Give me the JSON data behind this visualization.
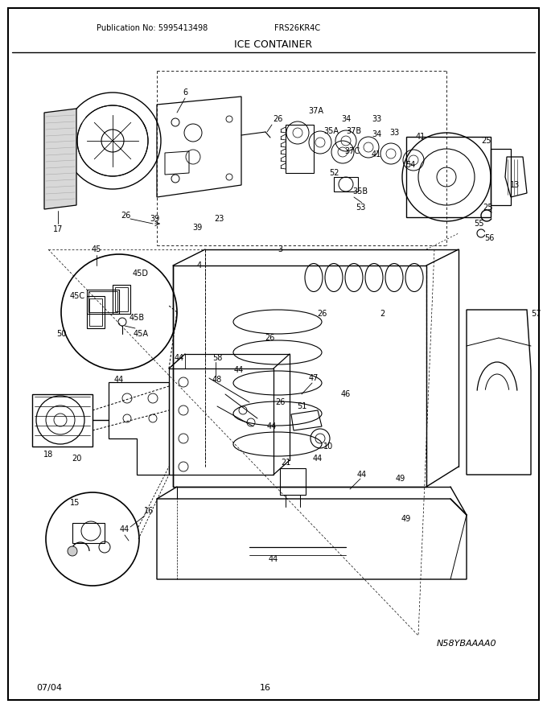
{
  "title": "ICE CONTAINER",
  "pub_no": "Publication No: 5995413498",
  "model": "FRS26KR4C",
  "date": "07/04",
  "page": "16",
  "part_no_img": "N58YBAAAA0",
  "bg_color": "#ffffff",
  "border_color": "#000000",
  "text_color": "#000000",
  "fig_width": 6.8,
  "fig_height": 8.8,
  "dpi": 100
}
